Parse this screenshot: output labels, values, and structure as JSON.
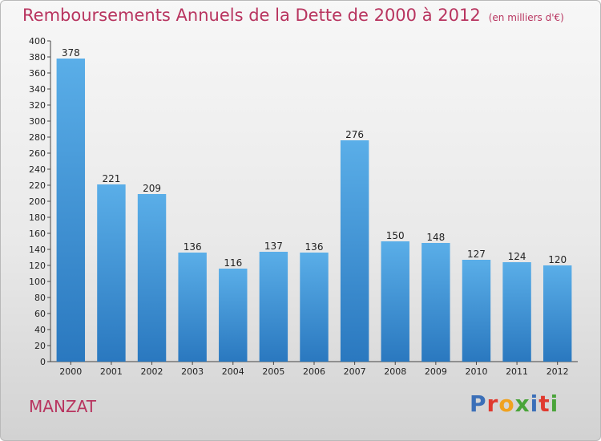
{
  "header": {
    "title": "Remboursements Annuels de la Dette de 2000 à 2012",
    "subtitle": "(en milliers d'€)"
  },
  "footer": {
    "city": "MANZAT",
    "logo_text": "Proxiti",
    "logo_colors": [
      "#3b6fb8",
      "#e03a2f",
      "#f0a21f",
      "#4aa43a",
      "#3b6fb8",
      "#e03a2f",
      "#4aa43a"
    ]
  },
  "colors": {
    "bar_top": "#5aaee8",
    "bar_bottom": "#2a78bf",
    "text": "#222222",
    "accent": "#b8345f"
  },
  "chart_data": {
    "type": "bar",
    "categories": [
      "2000",
      "2001",
      "2002",
      "2003",
      "2004",
      "2005",
      "2006",
      "2007",
      "2008",
      "2009",
      "2010",
      "2011",
      "2012"
    ],
    "values": [
      378,
      221,
      209,
      136,
      116,
      137,
      136,
      276,
      150,
      148,
      127,
      124,
      120
    ],
    "ylim": [
      0,
      400
    ],
    "ytick_step": 20,
    "grid": false
  }
}
